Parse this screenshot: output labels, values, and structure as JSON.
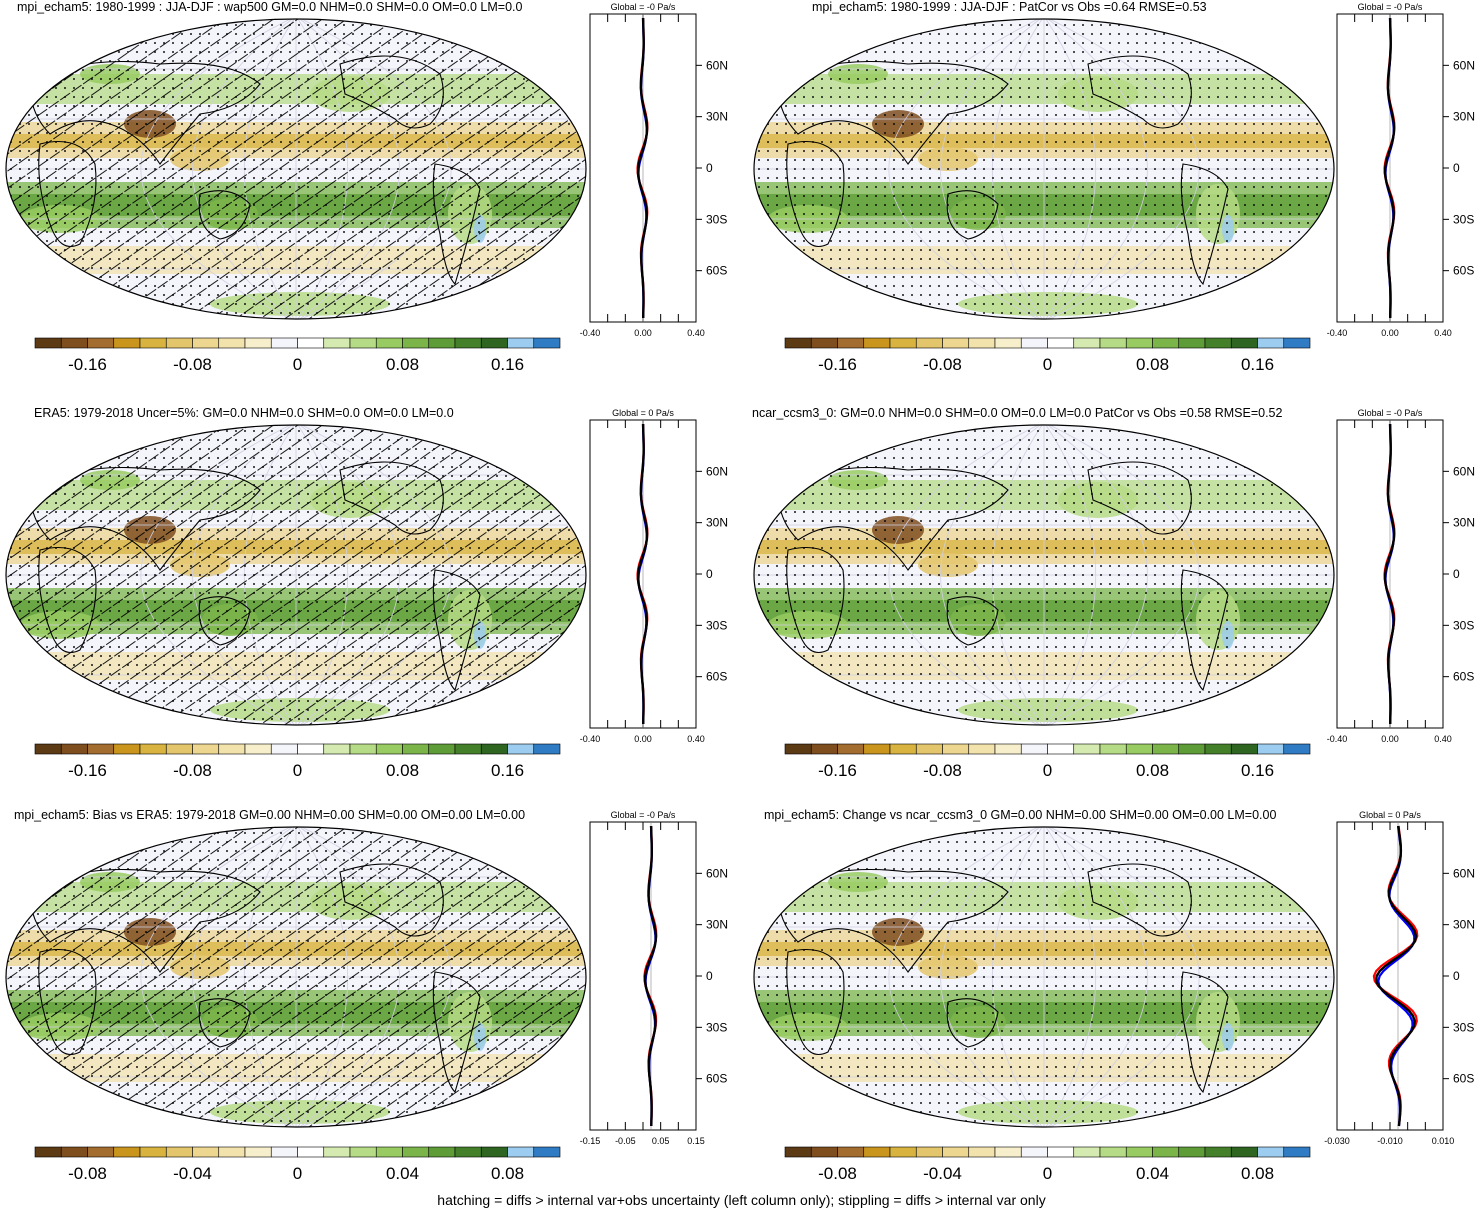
{
  "figure": {
    "footer": "hatching = diffs > internal var+obs uncertainty (left column only); stippling = diffs > internal var only"
  },
  "colors": {
    "palette": [
      "#5b3a14",
      "#7e4e1e",
      "#a26d2f",
      "#c9951d",
      "#d8b33f",
      "#e3c66b",
      "#ecd690",
      "#f2e3ad",
      "#f7efcb",
      "#f4f4fb",
      "#ffffff",
      "#d4eab0",
      "#b6db86",
      "#98cb61",
      "#7bb54a",
      "#5e9c37",
      "#447f2a",
      "#2e6521",
      "#9cccef",
      "#2f7cc4"
    ],
    "line_red": "#ff0000",
    "line_blue": "#0000ff",
    "line_black": "#000000"
  },
  "panels": [
    {
      "title": "mpi_echam5: 1980-1999 : JJA-DJF : wap500 GM=0.0 NHM=0.0 SHM=0.0 OM=0.0 LM=0.0",
      "zonal_title": "Global = -0 Pa/s",
      "lat_labels": [
        "60N",
        "30N",
        "0",
        "30S",
        "60S"
      ],
      "x_ticks": [
        "-0.40",
        "0.00",
        "0.40"
      ],
      "cbar_labels": [
        "-0.16",
        "-0.08",
        "0",
        "0.08",
        "0.16"
      ],
      "overlay": "hatching"
    },
    {
      "title": "mpi_echam5: 1980-1999 : JJA-DJF : PatCor vs Obs =0.64 RMSE=0.53",
      "zonal_title": "Global = -0 Pa/s",
      "lat_labels": [
        "60N",
        "30N",
        "0",
        "30S",
        "60S"
      ],
      "x_ticks": [
        "-0.40",
        "0.00",
        "0.40"
      ],
      "cbar_labels": [
        "-0.16",
        "-0.08",
        "0",
        "0.08",
        "0.16"
      ],
      "overlay": "stippling"
    },
    {
      "title": "ERA5: 1979-2018 Uncer=5%: GM=0.0 NHM=0.0 SHM=0.0 OM=0.0 LM=0.0",
      "zonal_title": "Global = 0 Pa/s",
      "lat_labels": [
        "60N",
        "30N",
        "0",
        "30S",
        "60S"
      ],
      "x_ticks": [
        "-0.40",
        "0.00",
        "0.40"
      ],
      "cbar_labels": [
        "-0.16",
        "-0.08",
        "0",
        "0.08",
        "0.16"
      ],
      "overlay": "hatching"
    },
    {
      "title": "ncar_ccsm3_0: GM=0.0 NHM=0.0 SHM=0.0 OM=0.0 LM=0.0 PatCor vs Obs =0.58 RMSE=0.52",
      "zonal_title": "Global = -0 Pa/s",
      "lat_labels": [
        "60N",
        "30N",
        "0",
        "30S",
        "60S"
      ],
      "x_ticks": [
        "-0.40",
        "0.00",
        "0.40"
      ],
      "cbar_labels": [
        "-0.16",
        "-0.08",
        "0",
        "0.08",
        "0.16"
      ],
      "overlay": "stippling"
    },
    {
      "title": "mpi_echam5: Bias vs ERA5: 1979-2018 GM=0.00 NHM=0.00 SHM=0.00 OM=0.00 LM=0.00",
      "zonal_title": "Global = -0 Pa/s",
      "lat_labels": [
        "60N",
        "30N",
        "0",
        "30S",
        "60S"
      ],
      "x_ticks": [
        "-0.15",
        "-0.05",
        "0.05",
        "0.15"
      ],
      "cbar_labels": [
        "-0.08",
        "-0.04",
        "0",
        "0.04",
        "0.08"
      ],
      "overlay": "hatching"
    },
    {
      "title": "mpi_echam5: Change vs ncar_ccsm3_0 GM=0.00 NHM=0.00 SHM=0.00 OM=0.00 LM=0.00",
      "zonal_title": "Global = 0 Pa/s",
      "lat_labels": [
        "60N",
        "30N",
        "0",
        "30S",
        "60S"
      ],
      "x_ticks": [
        "-0.030",
        "-0.010",
        "0.010"
      ],
      "cbar_labels": [
        "-0.08",
        "-0.04",
        "0",
        "0.04",
        "0.08"
      ],
      "overlay": "stippling"
    }
  ]
}
